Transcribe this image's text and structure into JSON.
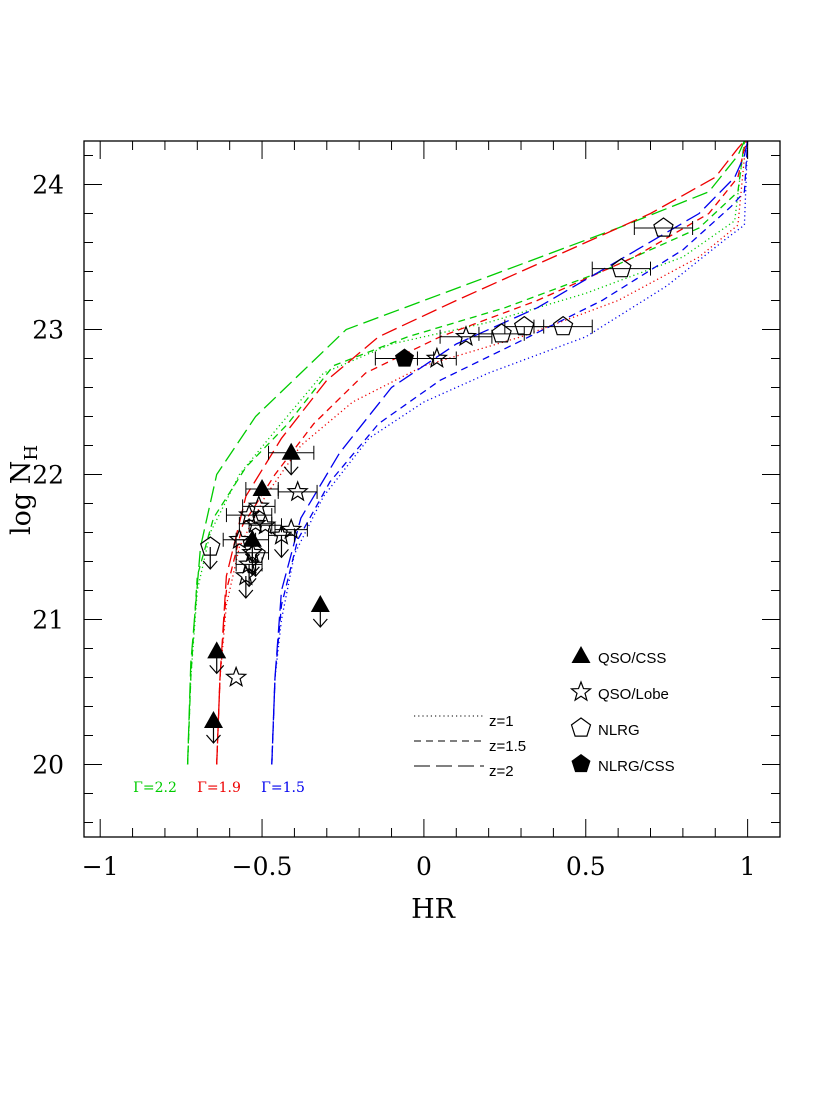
{
  "chart_data": {
    "type": "scatter",
    "xlabel": "HR",
    "ylabel": "log N",
    "ylabel_subscript": "H",
    "xlim": [
      -1.05,
      1.1
    ],
    "ylim": [
      19.5,
      24.3
    ],
    "x_ticks": [
      -1,
      -0.5,
      0,
      0.5,
      1
    ],
    "x_tick_labels": [
      "−1",
      "−0.5",
      "0",
      "0.5",
      "1"
    ],
    "y_ticks": [
      20,
      21,
      22,
      23,
      24
    ],
    "y_tick_labels": [
      "20",
      "21",
      "22",
      "23",
      "24"
    ],
    "grid": false,
    "legend_position": "lower-right",
    "markers": [
      {
        "name": "QSO/CSS",
        "symbol": "filled-triangle"
      },
      {
        "name": "QSO/Lobe",
        "symbol": "open-star"
      },
      {
        "name": "NLRG",
        "symbol": "open-pentagon"
      },
      {
        "name": "NLRG/CSS",
        "symbol": "filled-pentagon"
      }
    ],
    "line_styles": [
      {
        "name": "z=1",
        "dash": "dotted"
      },
      {
        "name": "z=1.5",
        "dash": "short-dash"
      },
      {
        "name": "z=2",
        "dash": "long-dash"
      }
    ],
    "gamma_labels": [
      {
        "text": "Γ=2.2",
        "color": "#00cc00"
      },
      {
        "text": "Γ=1.9",
        "color": "#ee0000"
      },
      {
        "text": "Γ=1.5",
        "color": "#0000ee"
      }
    ],
    "model_curves": [
      {
        "gamma": 2.2,
        "z": 1,
        "color": "#00cc00",
        "dash": "dotted",
        "points": [
          [
            -0.73,
            20.0
          ],
          [
            -0.72,
            20.6
          ],
          [
            -0.7,
            21.2
          ],
          [
            -0.66,
            21.6
          ],
          [
            -0.57,
            22.0
          ],
          [
            -0.46,
            22.3
          ],
          [
            -0.31,
            22.7
          ],
          [
            -0.1,
            22.9
          ],
          [
            0.2,
            23.05
          ],
          [
            0.5,
            23.25
          ],
          [
            0.8,
            23.5
          ],
          [
            0.96,
            23.75
          ],
          [
            0.99,
            24.3
          ]
        ]
      },
      {
        "gamma": 2.2,
        "z": 1.5,
        "color": "#00cc00",
        "dash": "short-dash",
        "points": [
          [
            -0.73,
            20.0
          ],
          [
            -0.72,
            20.6
          ],
          [
            -0.7,
            21.3
          ],
          [
            -0.65,
            21.7
          ],
          [
            -0.55,
            22.05
          ],
          [
            -0.42,
            22.35
          ],
          [
            -0.28,
            22.75
          ],
          [
            -0.05,
            22.95
          ],
          [
            0.25,
            23.15
          ],
          [
            0.55,
            23.4
          ],
          [
            0.85,
            23.7
          ],
          [
            0.97,
            23.95
          ],
          [
            0.99,
            24.3
          ]
        ]
      },
      {
        "gamma": 2.2,
        "z": 2,
        "color": "#00cc00",
        "dash": "long-dash",
        "points": [
          [
            -0.73,
            20.0
          ],
          [
            -0.72,
            20.7
          ],
          [
            -0.69,
            21.5
          ],
          [
            -0.64,
            22.0
          ],
          [
            -0.52,
            22.4
          ],
          [
            -0.38,
            22.7
          ],
          [
            -0.24,
            23.0
          ],
          [
            0.0,
            23.2
          ],
          [
            0.3,
            23.45
          ],
          [
            0.6,
            23.7
          ],
          [
            0.88,
            23.95
          ],
          [
            0.97,
            24.2
          ],
          [
            0.99,
            24.3
          ]
        ]
      },
      {
        "gamma": 1.9,
        "z": 1,
        "color": "#ee0000",
        "dash": "dotted",
        "points": [
          [
            -0.64,
            20.0
          ],
          [
            -0.63,
            20.6
          ],
          [
            -0.61,
            21.1
          ],
          [
            -0.57,
            21.5
          ],
          [
            -0.49,
            21.85
          ],
          [
            -0.38,
            22.2
          ],
          [
            -0.22,
            22.5
          ],
          [
            0.0,
            22.75
          ],
          [
            0.3,
            22.95
          ],
          [
            0.6,
            23.2
          ],
          [
            0.85,
            23.5
          ],
          [
            0.97,
            23.72
          ],
          [
            0.995,
            24.3
          ]
        ]
      },
      {
        "gamma": 1.9,
        "z": 1.5,
        "color": "#ee0000",
        "dash": "short-dash",
        "points": [
          [
            -0.64,
            20.0
          ],
          [
            -0.63,
            20.6
          ],
          [
            -0.61,
            21.2
          ],
          [
            -0.56,
            21.65
          ],
          [
            -0.46,
            22.0
          ],
          [
            -0.34,
            22.35
          ],
          [
            -0.18,
            22.7
          ],
          [
            0.05,
            22.95
          ],
          [
            0.35,
            23.2
          ],
          [
            0.65,
            23.5
          ],
          [
            0.88,
            23.8
          ],
          [
            0.97,
            24.05
          ],
          [
            0.995,
            24.3
          ]
        ]
      },
      {
        "gamma": 1.9,
        "z": 2,
        "color": "#ee0000",
        "dash": "long-dash",
        "points": [
          [
            -0.64,
            20.0
          ],
          [
            -0.63,
            20.6
          ],
          [
            -0.61,
            21.3
          ],
          [
            -0.55,
            21.85
          ],
          [
            -0.44,
            22.25
          ],
          [
            -0.3,
            22.65
          ],
          [
            -0.14,
            22.95
          ],
          [
            0.1,
            23.2
          ],
          [
            0.4,
            23.5
          ],
          [
            0.7,
            23.8
          ],
          [
            0.9,
            24.05
          ],
          [
            0.97,
            24.25
          ],
          [
            0.99,
            24.3
          ]
        ]
      },
      {
        "gamma": 1.5,
        "z": 1,
        "color": "#0000ee",
        "dash": "dotted",
        "points": [
          [
            -0.47,
            20.0
          ],
          [
            -0.46,
            20.6
          ],
          [
            -0.44,
            21.0
          ],
          [
            -0.4,
            21.45
          ],
          [
            -0.31,
            21.85
          ],
          [
            -0.17,
            22.25
          ],
          [
            0.0,
            22.5
          ],
          [
            0.2,
            22.7
          ],
          [
            0.5,
            22.95
          ],
          [
            0.75,
            23.3
          ],
          [
            0.93,
            23.62
          ],
          [
            0.99,
            23.72
          ],
          [
            1.0,
            24.3
          ]
        ]
      },
      {
        "gamma": 1.5,
        "z": 1.5,
        "color": "#0000ee",
        "dash": "short-dash",
        "points": [
          [
            -0.47,
            20.0
          ],
          [
            -0.46,
            20.6
          ],
          [
            -0.44,
            21.1
          ],
          [
            -0.39,
            21.55
          ],
          [
            -0.29,
            21.95
          ],
          [
            -0.14,
            22.35
          ],
          [
            0.05,
            22.65
          ],
          [
            0.28,
            22.9
          ],
          [
            0.55,
            23.2
          ],
          [
            0.8,
            23.55
          ],
          [
            0.95,
            23.85
          ],
          [
            0.99,
            23.95
          ],
          [
            1.0,
            24.3
          ]
        ]
      },
      {
        "gamma": 1.5,
        "z": 2,
        "color": "#0000ee",
        "dash": "long-dash",
        "points": [
          [
            -0.47,
            20.0
          ],
          [
            -0.46,
            20.6
          ],
          [
            -0.44,
            21.2
          ],
          [
            -0.38,
            21.7
          ],
          [
            -0.26,
            22.15
          ],
          [
            -0.1,
            22.6
          ],
          [
            0.1,
            22.9
          ],
          [
            0.35,
            23.15
          ],
          [
            0.62,
            23.5
          ],
          [
            0.85,
            23.8
          ],
          [
            0.96,
            24.05
          ],
          [
            0.99,
            24.2
          ],
          [
            1.0,
            24.3
          ]
        ]
      }
    ],
    "data_points": [
      {
        "type": "QSO/CSS",
        "x": -0.41,
        "y": 22.15,
        "xerr": 0.07,
        "upper_limit": true
      },
      {
        "type": "QSO/CSS",
        "x": -0.5,
        "y": 21.9,
        "xerr": 0.05,
        "upper_limit": false
      },
      {
        "type": "QSO/CSS",
        "x": -0.53,
        "y": 21.55,
        "xerr": 0.05,
        "upper_limit": true
      },
      {
        "type": "QSO/CSS",
        "x": -0.32,
        "y": 21.1,
        "xerr": 0,
        "upper_limit": true
      },
      {
        "type": "QSO/CSS",
        "x": -0.64,
        "y": 20.78,
        "xerr": 0,
        "upper_limit": true
      },
      {
        "type": "QSO/CSS",
        "x": -0.65,
        "y": 20.3,
        "xerr": 0,
        "upper_limit": true
      },
      {
        "type": "QSO/Lobe",
        "x": 0.04,
        "y": 22.8,
        "xerr": 0.06,
        "upper_limit": false
      },
      {
        "type": "QSO/Lobe",
        "x": 0.13,
        "y": 22.95,
        "xerr": 0.08,
        "upper_limit": false
      },
      {
        "type": "QSO/Lobe",
        "x": -0.39,
        "y": 21.88,
        "xerr": 0.06,
        "upper_limit": false
      },
      {
        "type": "QSO/Lobe",
        "x": -0.51,
        "y": 21.78,
        "xerr": 0.05,
        "upper_limit": false
      },
      {
        "type": "QSO/Lobe",
        "x": -0.54,
        "y": 21.72,
        "xerr": 0.07,
        "upper_limit": false
      },
      {
        "type": "QSO/Lobe",
        "x": -0.52,
        "y": 21.66,
        "xerr": 0.05,
        "upper_limit": false
      },
      {
        "type": "QSO/Lobe",
        "x": -0.49,
        "y": 21.65,
        "xerr": 0.05,
        "upper_limit": false
      },
      {
        "type": "QSO/Lobe",
        "x": -0.41,
        "y": 21.62,
        "xerr": 0.05,
        "upper_limit": false
      },
      {
        "type": "QSO/Lobe",
        "x": -0.44,
        "y": 21.58,
        "xerr": 0.04,
        "upper_limit": true
      },
      {
        "type": "QSO/Lobe",
        "x": -0.57,
        "y": 21.55,
        "xerr": 0.05,
        "upper_limit": false
      },
      {
        "type": "QSO/Lobe",
        "x": -0.53,
        "y": 21.46,
        "xerr": 0.05,
        "upper_limit": true
      },
      {
        "type": "QSO/Lobe",
        "x": -0.54,
        "y": 21.38,
        "xerr": 0.04,
        "upper_limit": true
      },
      {
        "type": "QSO/Lobe",
        "x": -0.55,
        "y": 21.3,
        "xerr": 0,
        "upper_limit": true
      },
      {
        "type": "QSO/Lobe",
        "x": -0.58,
        "y": 20.6,
        "xerr": 0,
        "upper_limit": false
      },
      {
        "type": "NLRG",
        "x": 0.74,
        "y": 23.7,
        "xerr": 0.09,
        "upper_limit": false
      },
      {
        "type": "NLRG",
        "x": 0.61,
        "y": 23.42,
        "xerr": 0.09,
        "upper_limit": false
      },
      {
        "type": "NLRG",
        "x": 0.43,
        "y": 23.02,
        "xerr": 0.09,
        "upper_limit": false
      },
      {
        "type": "NLRG",
        "x": 0.31,
        "y": 23.02,
        "xerr": 0.06,
        "upper_limit": false
      },
      {
        "type": "NLRG",
        "x": 0.24,
        "y": 22.97,
        "xerr": 0.07,
        "upper_limit": false
      },
      {
        "type": "NLRG",
        "x": -0.66,
        "y": 21.5,
        "xerr": 0,
        "upper_limit": true
      },
      {
        "type": "NLRG",
        "x": -0.52,
        "y": 21.45,
        "xerr": 0,
        "upper_limit": true
      },
      {
        "type": "NLRG/CSS",
        "x": -0.06,
        "y": 22.8,
        "xerr": 0.09,
        "upper_limit": false
      }
    ]
  }
}
